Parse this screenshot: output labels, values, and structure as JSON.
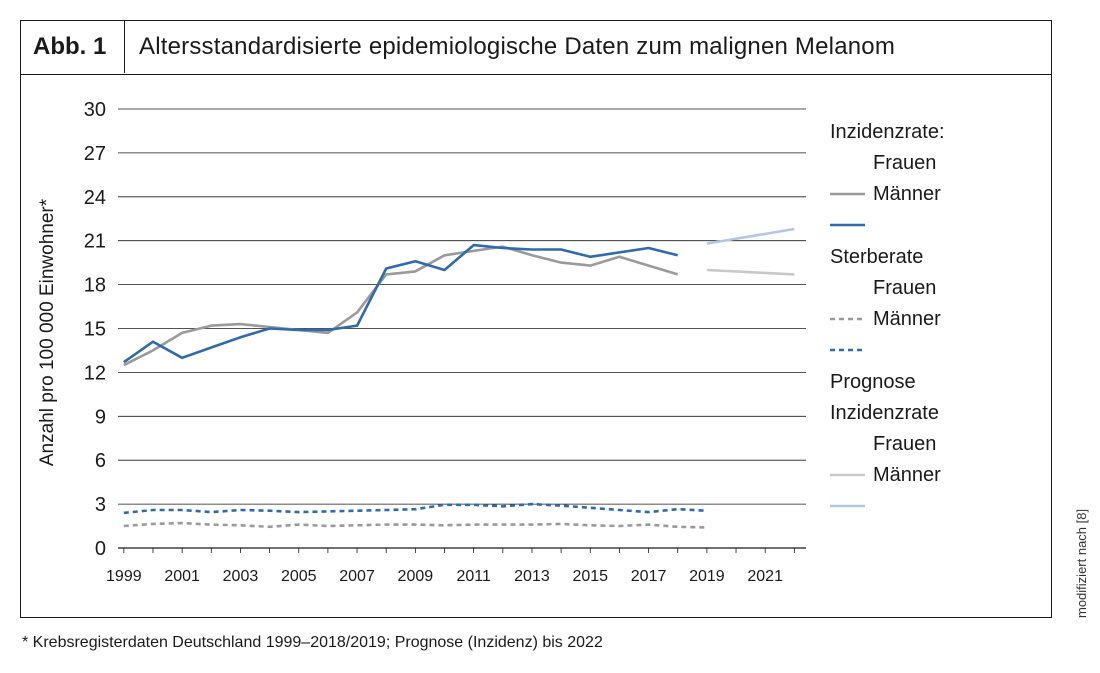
{
  "header": {
    "figure_label": "Abb. 1",
    "title": "Altersstandardisierte epidemiologische Daten zum malignen Melanom"
  },
  "side_note": "modifiziert nach [8]",
  "footnote": "* Krebsregisterdaten Deutschland 1999–2018/2019; Prognose (Inzidenz) bis 2022",
  "colors": {
    "frauen": "#9a9a9a",
    "maenner": "#2e6aad",
    "prognose_frauen": "#c8c8c8",
    "prognose_maenner": "#b3c6e3",
    "grid": "#1a1a1a"
  },
  "legend": {
    "groups": [
      {
        "heading": "Inzidenzrate:",
        "items": [
          {
            "label": "Frauen",
            "series": "inzidenz_frauen"
          },
          {
            "label": "Männer",
            "series": "inzidenz_maenner"
          }
        ]
      },
      {
        "heading": "Sterberate",
        "items": [
          {
            "label": "Frauen",
            "series": "sterbe_frauen"
          },
          {
            "label": "Männer",
            "series": "sterbe_maenner"
          }
        ]
      },
      {
        "heading": "Prognose\nInzidenzrate",
        "items": [
          {
            "label": "Frauen",
            "series": "prognose_frauen"
          },
          {
            "label": "Männer",
            "series": "prognose_maenner"
          }
        ]
      }
    ]
  },
  "chart_data": {
    "type": "line",
    "title": "",
    "xlabel": "",
    "ylabel": "Anzahl pro 100 000 Einwohner*",
    "xlim": [
      1998.8,
      2022.4
    ],
    "ylim": [
      0,
      30
    ],
    "y_ticks": [
      0,
      3,
      6,
      9,
      12,
      15,
      18,
      21,
      24,
      27,
      30
    ],
    "x_ticks": [
      1999,
      2001,
      2003,
      2005,
      2007,
      2009,
      2011,
      2013,
      2015,
      2017,
      2019,
      2021
    ],
    "grid": "horizontal",
    "legend_position": "right",
    "series": [
      {
        "id": "inzidenz_frauen",
        "name": "Inzidenzrate: Frauen",
        "style": "solid",
        "color_key": "frauen",
        "x": [
          1999,
          2000,
          2001,
          2002,
          2003,
          2004,
          2005,
          2006,
          2007,
          2008,
          2009,
          2010,
          2011,
          2012,
          2013,
          2014,
          2015,
          2016,
          2017,
          2018
        ],
        "y": [
          12.5,
          13.5,
          14.7,
          15.2,
          15.3,
          15.1,
          14.9,
          14.7,
          16.1,
          18.7,
          18.9,
          20.0,
          20.3,
          20.6,
          20.0,
          19.5,
          19.3,
          19.9,
          19.3,
          18.7
        ]
      },
      {
        "id": "inzidenz_maenner",
        "name": "Inzidenzrate: Männer",
        "style": "solid",
        "color_key": "maenner",
        "x": [
          1999,
          2000,
          2001,
          2002,
          2003,
          2004,
          2005,
          2006,
          2007,
          2008,
          2009,
          2010,
          2011,
          2012,
          2013,
          2014,
          2015,
          2016,
          2017,
          2018
        ],
        "y": [
          12.7,
          14.1,
          13.0,
          13.7,
          14.4,
          15.0,
          14.9,
          14.9,
          15.2,
          19.1,
          19.6,
          19.0,
          20.7,
          20.5,
          20.4,
          20.4,
          19.9,
          20.2,
          20.5,
          20.0
        ]
      },
      {
        "id": "sterbe_frauen",
        "name": "Sterberate: Frauen",
        "style": "dashed",
        "color_key": "frauen",
        "x": [
          1999,
          2000,
          2001,
          2002,
          2003,
          2004,
          2005,
          2006,
          2007,
          2008,
          2009,
          2010,
          2011,
          2012,
          2013,
          2014,
          2015,
          2016,
          2017,
          2018,
          2019
        ],
        "y": [
          1.5,
          1.65,
          1.7,
          1.6,
          1.55,
          1.45,
          1.6,
          1.5,
          1.55,
          1.6,
          1.6,
          1.55,
          1.6,
          1.6,
          1.6,
          1.65,
          1.55,
          1.5,
          1.6,
          1.45,
          1.4
        ]
      },
      {
        "id": "sterbe_maenner",
        "name": "Sterberate: Männer",
        "style": "dashed",
        "color_key": "maenner",
        "x": [
          1999,
          2000,
          2001,
          2002,
          2003,
          2004,
          2005,
          2006,
          2007,
          2008,
          2009,
          2010,
          2011,
          2012,
          2013,
          2014,
          2015,
          2016,
          2017,
          2018,
          2019
        ],
        "y": [
          2.4,
          2.6,
          2.6,
          2.45,
          2.6,
          2.55,
          2.45,
          2.5,
          2.55,
          2.6,
          2.65,
          2.95,
          2.95,
          2.85,
          3.0,
          2.9,
          2.75,
          2.6,
          2.45,
          2.65,
          2.55
        ]
      },
      {
        "id": "prognose_frauen",
        "name": "Prognose Inzidenzrate: Frauen",
        "style": "solid",
        "color_key": "prognose_frauen",
        "x": [
          2019,
          2022
        ],
        "y": [
          19.0,
          18.7
        ]
      },
      {
        "id": "prognose_maenner",
        "name": "Prognose Inzidenzrate: Männer",
        "style": "solid",
        "color_key": "prognose_maenner",
        "x": [
          2019,
          2022
        ],
        "y": [
          20.8,
          21.8
        ]
      }
    ]
  }
}
